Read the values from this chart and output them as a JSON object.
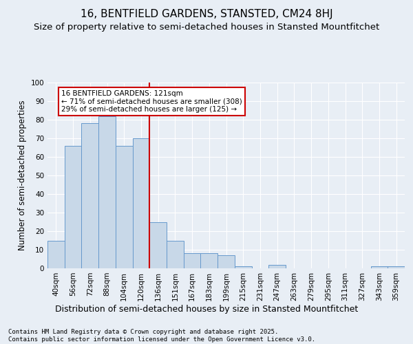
{
  "title1": "16, BENTFIELD GARDENS, STANSTED, CM24 8HJ",
  "title2": "Size of property relative to semi-detached houses in Stansted Mountfitchet",
  "xlabel": "Distribution of semi-detached houses by size in Stansted Mountfitchet",
  "ylabel": "Number of semi-detached properties",
  "footer": "Contains HM Land Registry data © Crown copyright and database right 2025.\nContains public sector information licensed under the Open Government Licence v3.0.",
  "categories": [
    "40sqm",
    "56sqm",
    "72sqm",
    "88sqm",
    "104sqm",
    "120sqm",
    "136sqm",
    "151sqm",
    "167sqm",
    "183sqm",
    "199sqm",
    "215sqm",
    "231sqm",
    "247sqm",
    "263sqm",
    "279sqm",
    "295sqm",
    "311sqm",
    "327sqm",
    "343sqm",
    "359sqm"
  ],
  "values": [
    15,
    66,
    78,
    82,
    66,
    70,
    25,
    15,
    8,
    8,
    7,
    1,
    0,
    2,
    0,
    0,
    0,
    0,
    0,
    1,
    1
  ],
  "bar_color": "#c8d8e8",
  "bar_edge_color": "#6699cc",
  "red_line_index": 5,
  "annotation_text": "16 BENTFIELD GARDENS: 121sqm\n← 71% of semi-detached houses are smaller (308)\n29% of semi-detached houses are larger (125) →",
  "annotation_box_color": "#ffffff",
  "annotation_box_edge": "#cc0000",
  "ylim": [
    0,
    100
  ],
  "background_color": "#e8eef5",
  "plot_background": "#e8eef5",
  "grid_color": "#ffffff",
  "title1_fontsize": 11,
  "title2_fontsize": 9.5,
  "xlabel_fontsize": 9,
  "ylabel_fontsize": 8.5,
  "tick_fontsize": 7.5,
  "footer_fontsize": 6.5
}
